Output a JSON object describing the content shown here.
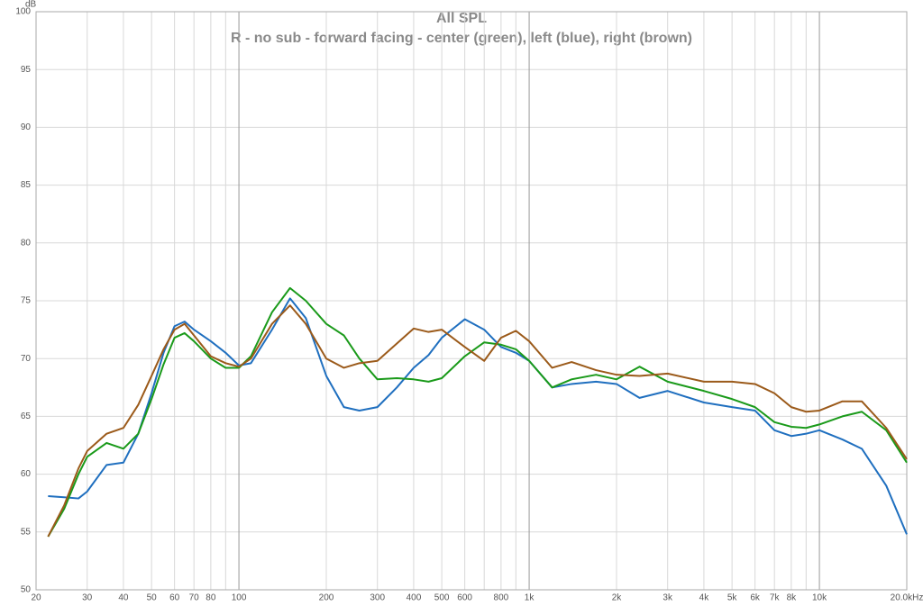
{
  "chart_data": {
    "type": "line",
    "title": "All SPL",
    "subtitle": "R - no sub - forward facing - center (green), left (blue), right (brown)",
    "y_label": "dB",
    "xscale": "log",
    "grid": true,
    "xlim": [
      20,
      20000
    ],
    "ylim": [
      50,
      100
    ],
    "yticks": [
      50,
      55,
      60,
      65,
      70,
      75,
      80,
      85,
      90,
      95,
      100
    ],
    "xticks": [
      20,
      30,
      40,
      50,
      60,
      70,
      80,
      100,
      200,
      300,
      400,
      500,
      600,
      800,
      {
        "value": 1000,
        "label": "1k"
      },
      {
        "value": 2000,
        "label": "2k"
      },
      {
        "value": 3000,
        "label": "3k"
      },
      {
        "value": 4000,
        "label": "4k"
      },
      {
        "value": 5000,
        "label": "5k"
      },
      {
        "value": 6000,
        "label": "6k"
      },
      {
        "value": 7000,
        "label": "7k"
      },
      {
        "value": 8000,
        "label": "8k"
      },
      {
        "value": 10000,
        "label": "10k"
      },
      {
        "value": 20000,
        "label": "20.0kHz"
      }
    ],
    "xminor": [
      90,
      700,
      900,
      9000
    ],
    "x": [
      22,
      25,
      28,
      30,
      35,
      40,
      45,
      50,
      55,
      60,
      65,
      70,
      80,
      90,
      100,
      110,
      130,
      150,
      170,
      200,
      230,
      260,
      300,
      350,
      400,
      450,
      500,
      600,
      700,
      800,
      900,
      1000,
      1200,
      1400,
      1700,
      2000,
      2400,
      3000,
      4000,
      5000,
      6000,
      7000,
      8000,
      9000,
      10000,
      12000,
      14000,
      17000,
      20000
    ],
    "series": [
      {
        "name": "left",
        "color": "#1f6fbf",
        "values": [
          58.1,
          58.0,
          57.9,
          58.5,
          60.8,
          61.0,
          63.5,
          67,
          70.5,
          72.8,
          73.2,
          72.5,
          71.5,
          70.5,
          69.4,
          69.6,
          72.5,
          75.2,
          73.5,
          68.5,
          65.8,
          65.5,
          65.8,
          67.5,
          69.2,
          70.3,
          71.8,
          73.4,
          72.5,
          71,
          70.5,
          69.8,
          67.5,
          67.8,
          68,
          67.8,
          66.6,
          67.2,
          66.2,
          65.8,
          65.5,
          63.8,
          63.3,
          63.5,
          63.8,
          63,
          62.2,
          59,
          54.8
        ]
      },
      {
        "name": "center",
        "color": "#1a9a1a",
        "values": [
          54.6,
          57,
          60,
          61.5,
          62.7,
          62.2,
          63.5,
          66.5,
          69.5,
          71.8,
          72.2,
          71.5,
          70,
          69.2,
          69.2,
          70.2,
          74,
          76.1,
          75,
          73,
          72,
          70,
          68.2,
          68.3,
          68.2,
          68,
          68.3,
          70.2,
          71.4,
          71.2,
          70.8,
          69.8,
          67.5,
          68.2,
          68.6,
          68.2,
          69.3,
          68,
          67.2,
          66.5,
          65.8,
          64.5,
          64.1,
          64,
          64.3,
          65,
          65.4,
          63.8,
          61
        ]
      },
      {
        "name": "right",
        "color": "#9b5a1a",
        "values": [
          54.6,
          57.3,
          60.5,
          62,
          63.5,
          64,
          66,
          68.5,
          70.8,
          72.5,
          73,
          72,
          70.2,
          69.6,
          69.3,
          70,
          73,
          74.6,
          73,
          70,
          69.2,
          69.6,
          69.8,
          71.3,
          72.6,
          72.3,
          72.5,
          71,
          69.8,
          71.8,
          72.4,
          71.5,
          69.2,
          69.7,
          69,
          68.6,
          68.5,
          68.7,
          68,
          68,
          67.8,
          67,
          65.8,
          65.4,
          65.5,
          66.3,
          66.3,
          64,
          61.3
        ]
      }
    ]
  }
}
